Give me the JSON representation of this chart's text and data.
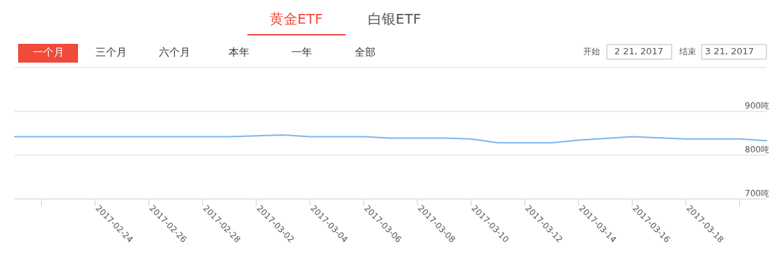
{
  "chart_data": {
    "type": "line",
    "title": "黄金ETF",
    "annotations": [
      "白银ETF",
      "一个月",
      "三个月",
      "六个月",
      "本年",
      "一年",
      "全部",
      "开始",
      "2 21, 2017",
      "结束",
      "3 21, 2017"
    ],
    "x": [
      "2017-02-21",
      "2017-03-01",
      "2017-03-03",
      "2017-03-04",
      "2017-03-06",
      "2017-03-07",
      "2017-03-09",
      "2017-03-10",
      "2017-03-11",
      "2017-03-13",
      "2017-03-14",
      "2017-03-16",
      "2017-03-18",
      "2017-03-20",
      "2017-03-21"
    ],
    "series": [
      {
        "color": "#7cb5ec",
        "values": [
          842,
          842,
          846,
          842,
          842,
          839,
          839,
          837,
          828,
          828,
          834,
          842,
          837,
          837,
          833
        ]
      }
    ],
    "xlim": [
      "2017-02-21",
      "2017-03-21"
    ],
    "xticks": [
      {
        "value": "2017-02-22",
        "label": null
      },
      "2017-02-24",
      "2017-02-26",
      "2017-02-28",
      "2017-03-02",
      "2017-03-04",
      "2017-03-06",
      "2017-03-08",
      "2017-03-10",
      "2017-03-12",
      "2017-03-14",
      "2017-03-16",
      "2017-03-18",
      {
        "value": "2017-03-20",
        "label": null
      }
    ],
    "ylim": [
      700,
      1000
    ],
    "yticks": [
      {
        "value": 700,
        "label": "700吨"
      },
      {
        "value": 800,
        "label": "800吨"
      },
      {
        "value": 900,
        "label": "900吨"
      }
    ],
    "grid": "y",
    "marker": "none",
    "line_style": "solid"
  }
}
